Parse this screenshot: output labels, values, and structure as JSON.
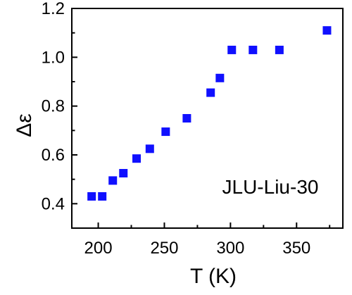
{
  "chart_data": {
    "type": "scatter",
    "title": "",
    "xlabel": "T (K)",
    "ylabel": "Δε",
    "annotation": "JLU-Liu-30",
    "xlim": [
      180,
      385
    ],
    "ylim": [
      0.3,
      1.2
    ],
    "x_ticks": [
      200,
      250,
      300,
      350
    ],
    "y_ticks": [
      0.4,
      0.6,
      0.8,
      1.0,
      1.2
    ],
    "x_tick_labels": [
      "200",
      "250",
      "300",
      "350"
    ],
    "y_tick_labels": [
      "0.4",
      "0.6",
      "0.8",
      "1.0",
      "1.2"
    ],
    "grid": false,
    "marker_color": "#1010FF",
    "series": [
      {
        "x": [
          195,
          203,
          211,
          219,
          229,
          239,
          251,
          267,
          285,
          292,
          301,
          317,
          337,
          373
        ],
        "y": [
          0.43,
          0.43,
          0.495,
          0.525,
          0.585,
          0.625,
          0.695,
          0.75,
          0.855,
          0.915,
          1.03,
          1.03,
          1.03,
          1.11
        ]
      }
    ]
  }
}
